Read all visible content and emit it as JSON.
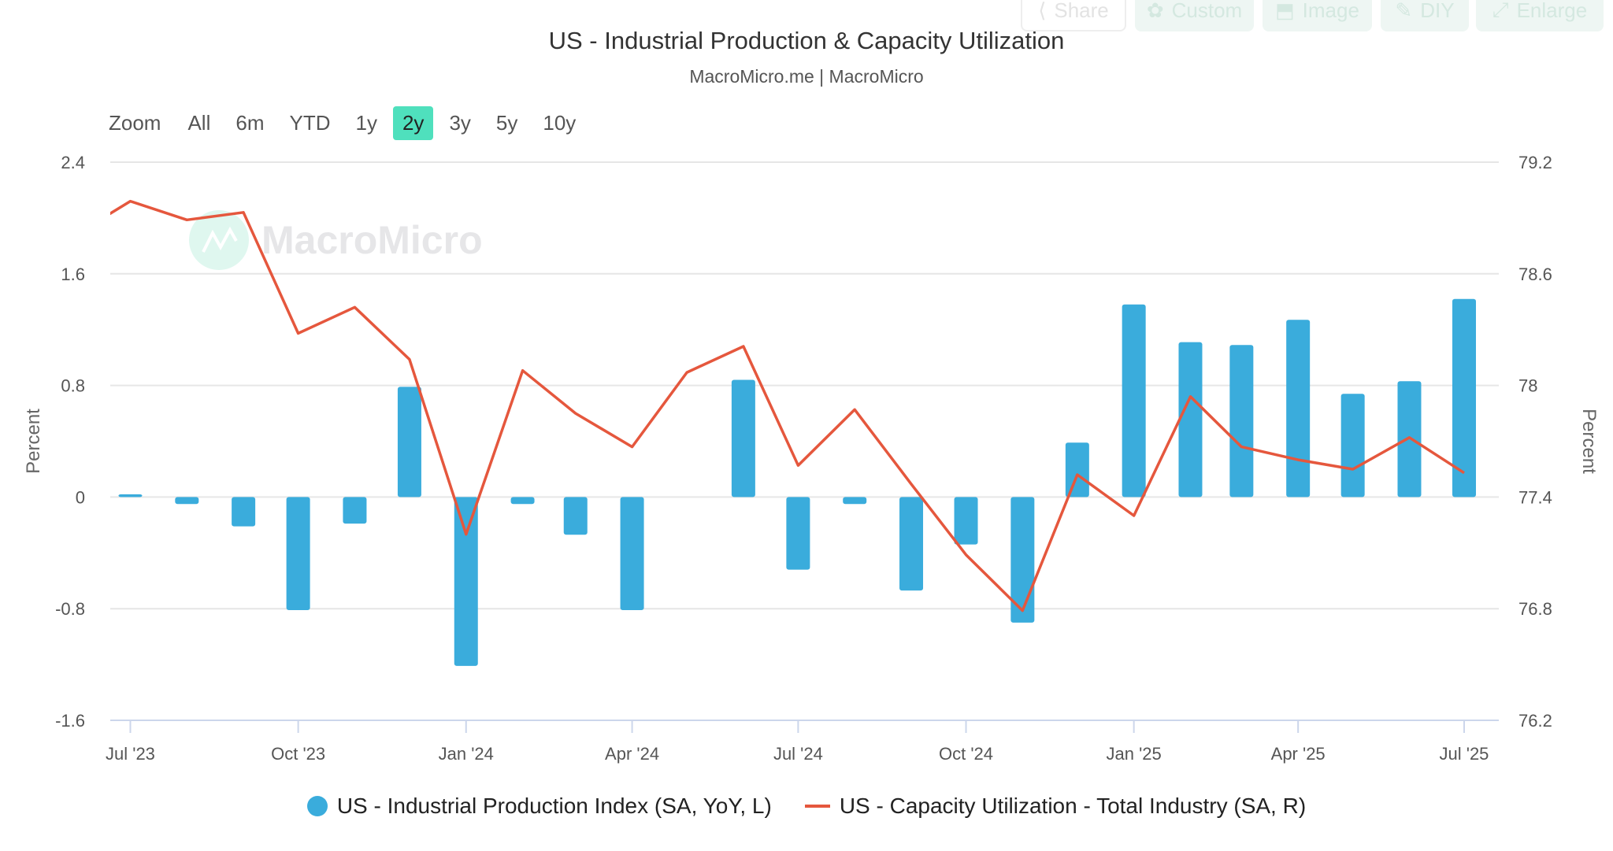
{
  "toolbar": {
    "buttons": [
      {
        "label": "Share",
        "icon": "share-icon"
      },
      {
        "label": "Custom",
        "icon": "gear-icon"
      },
      {
        "label": "Image",
        "icon": "image-download-icon"
      },
      {
        "label": "DIY",
        "icon": "pencil-icon"
      },
      {
        "label": "Enlarge",
        "icon": "expand-icon"
      }
    ]
  },
  "range_selector": {
    "label": "Zoom",
    "options": [
      "All",
      "6m",
      "YTD",
      "1y",
      "2y",
      "3y",
      "5y",
      "10y"
    ],
    "selected": "2y",
    "selected_color": "#4fe0bd"
  },
  "watermark": "MacroMicro",
  "chart_data": {
    "type": "bar+line",
    "title": "US - Industrial Production & Capacity Utilization",
    "subtitle": "MacroMicro.me | MacroMicro",
    "x": [
      "2023-06",
      "2023-07",
      "2023-08",
      "2023-09",
      "2023-10",
      "2023-11",
      "2023-12",
      "2024-01",
      "2024-02",
      "2024-03",
      "2024-04",
      "2024-05",
      "2024-06",
      "2024-07",
      "2024-08",
      "2024-09",
      "2024-10",
      "2024-11",
      "2024-12",
      "2025-01",
      "2025-02",
      "2025-03",
      "2025-04",
      "2025-05",
      "2025-06",
      "2025-07"
    ],
    "xticks": [
      {
        "date": "2023-07",
        "label": "Jul '23"
      },
      {
        "date": "2023-10",
        "label": "Oct '23"
      },
      {
        "date": "2024-01",
        "label": "Jan '24"
      },
      {
        "date": "2024-04",
        "label": "Apr '24"
      },
      {
        "date": "2024-07",
        "label": "Jul '24"
      },
      {
        "date": "2024-10",
        "label": "Oct '24"
      },
      {
        "date": "2025-01",
        "label": "Jan '25"
      },
      {
        "date": "2025-04",
        "label": "Apr '25"
      },
      {
        "date": "2025-07",
        "label": "Jul '25"
      }
    ],
    "xlim": [
      "2023-06-20",
      "2025-07-20"
    ],
    "left_axis": {
      "label": "Percent",
      "lim": [
        -1.6,
        2.4
      ],
      "ticks": [
        "2.4",
        "1.6",
        "0.8",
        "0",
        "-0.8",
        "-1.6"
      ]
    },
    "right_axis": {
      "label": "Percent",
      "lim": [
        76.2,
        79.2
      ],
      "ticks": [
        "79.2",
        "78.6",
        "78",
        "77.4",
        "76.8",
        "76.2"
      ]
    },
    "grid": true,
    "legend_position": "bottom",
    "series": [
      {
        "name": "US - Industrial Production Index (SA, YoY, L)",
        "type": "bar",
        "axis": "left",
        "color": "#3aacdc",
        "values": [
          null,
          0.02,
          -0.05,
          -0.21,
          -0.81,
          -0.19,
          0.79,
          -1.21,
          -0.05,
          -0.27,
          -0.81,
          null,
          0.84,
          -0.52,
          -0.05,
          -0.67,
          -0.34,
          -0.9,
          0.39,
          1.38,
          1.11,
          1.09,
          1.27,
          0.74,
          0.83,
          1.42
        ]
      },
      {
        "name": "US - Capacity Utilization - Total Industry (SA, R)",
        "type": "line",
        "axis": "right",
        "color": "#e5573d",
        "values": [
          78.81,
          78.99,
          78.89,
          78.93,
          78.28,
          78.42,
          78.14,
          77.2,
          78.08,
          77.85,
          77.67,
          78.07,
          78.21,
          77.57,
          77.87,
          77.47,
          77.09,
          76.79,
          77.52,
          77.3,
          77.94,
          77.67,
          77.6,
          77.55,
          77.72,
          77.53
        ]
      }
    ]
  }
}
